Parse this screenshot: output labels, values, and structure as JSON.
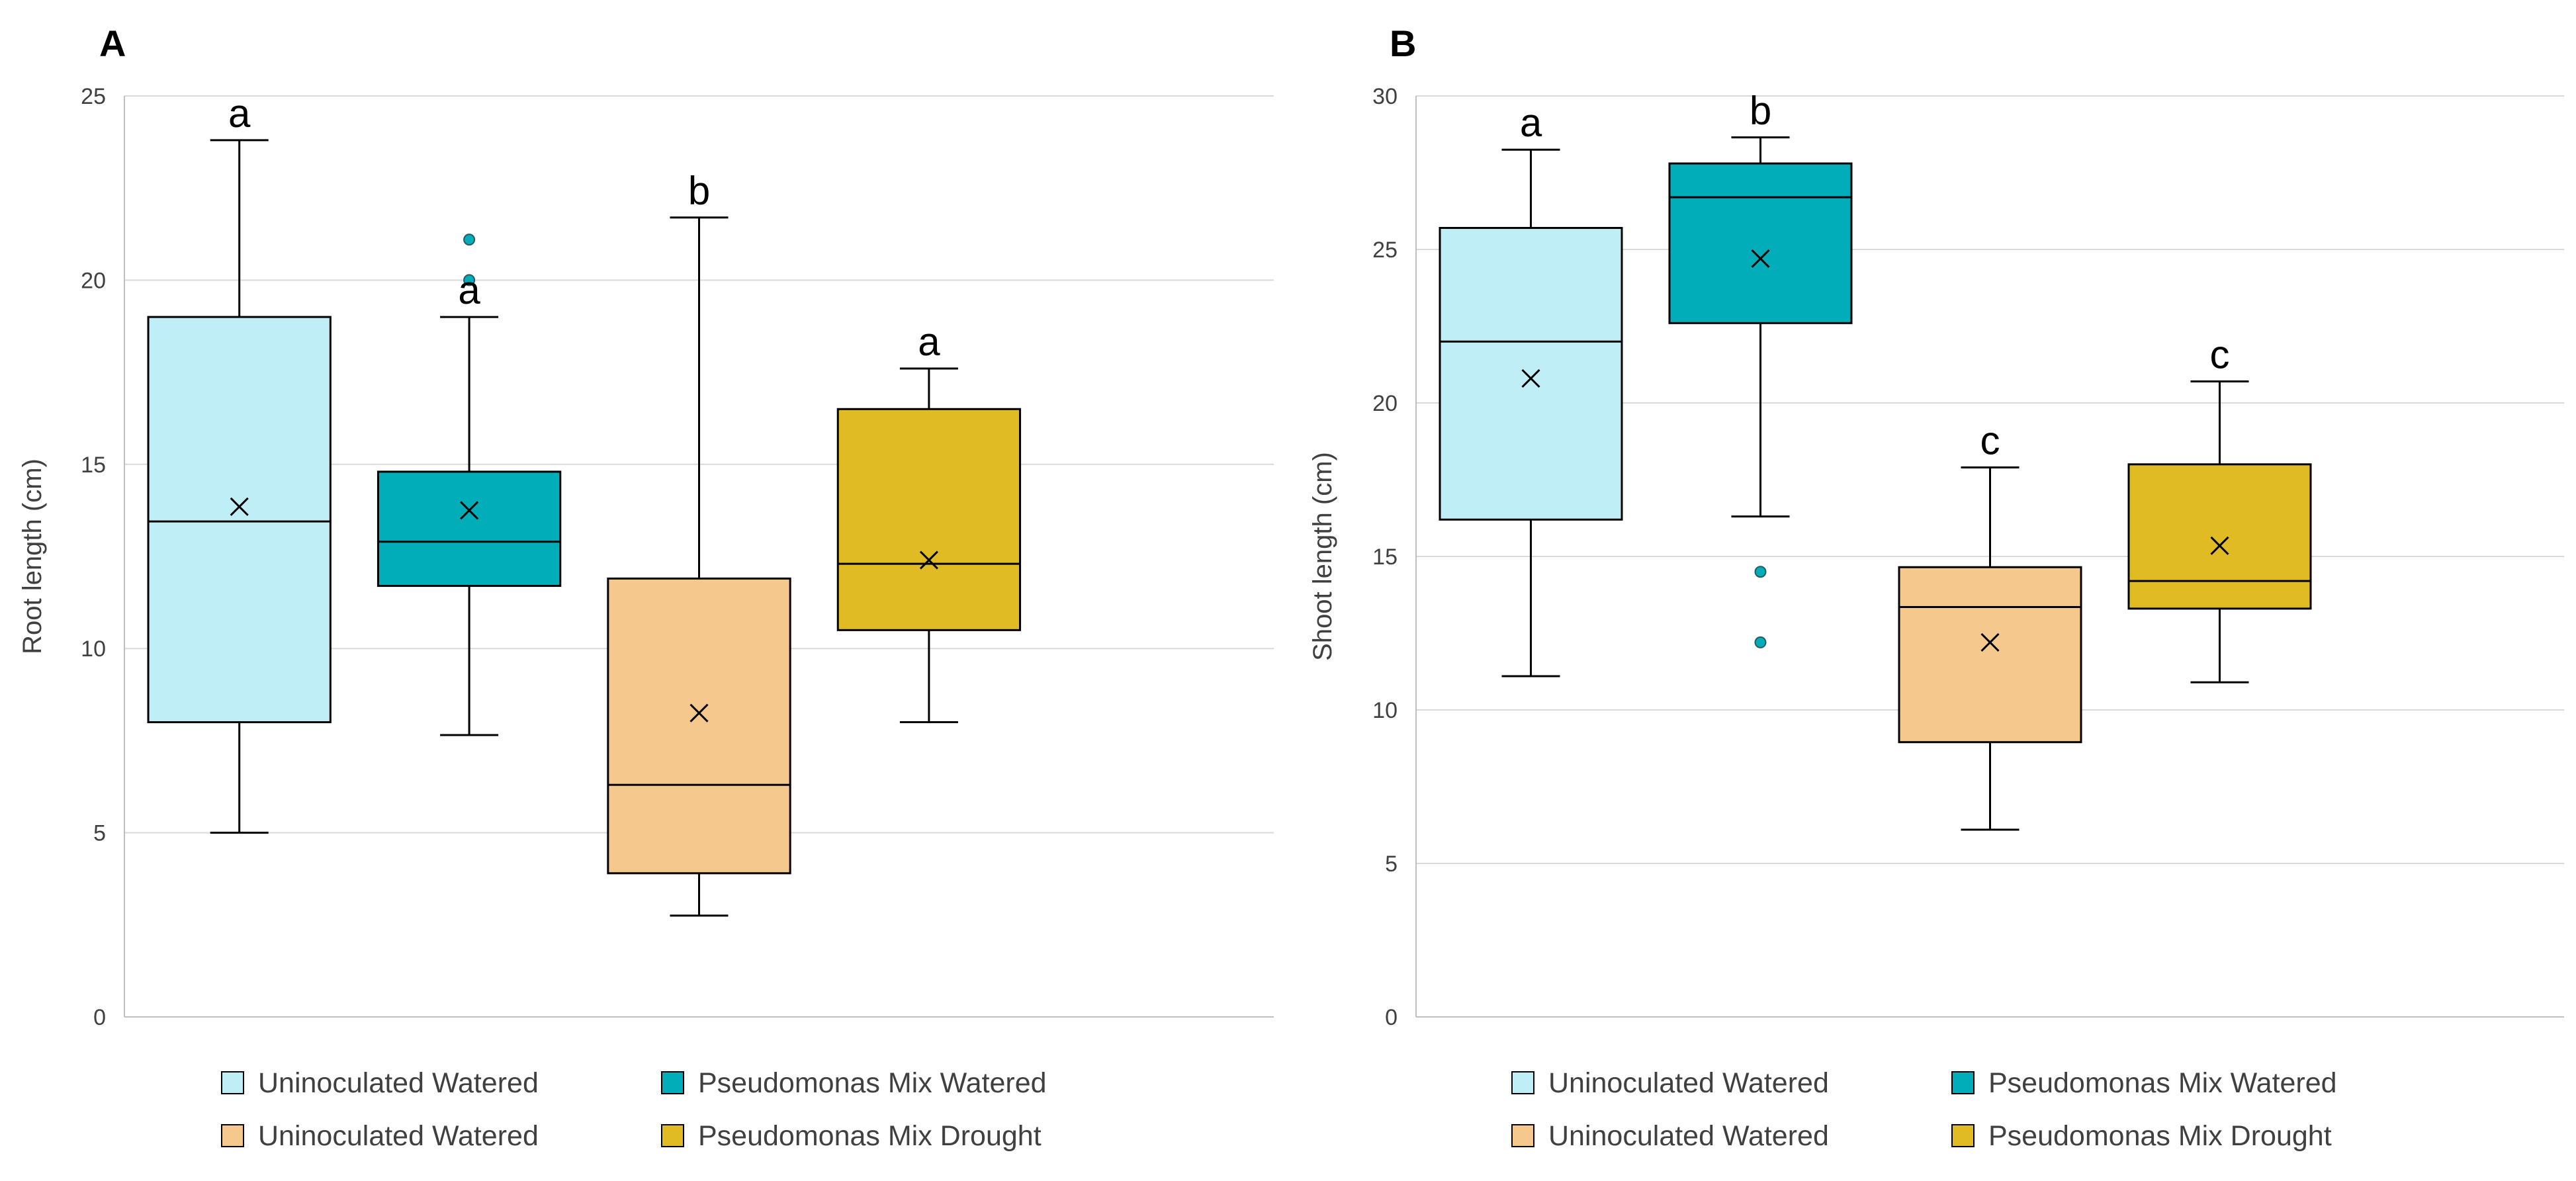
{
  "colors": {
    "grid": "#d9d9d9",
    "axis": "#bfbfbf",
    "stroke": "#000000",
    "text": "#404040"
  },
  "legend": {
    "items": [
      {
        "label": "Uninoculated Watered",
        "color": "#c0eef6"
      },
      {
        "label": "Pseudomonas Mix Watered",
        "color": "#00adb9"
      },
      {
        "label": "Uninoculated Watered",
        "color": "#f5c98e"
      },
      {
        "label": "Pseudomonas Mix Drought",
        "color": "#e0bb24"
      }
    ]
  },
  "chart_data": [
    {
      "type": "box",
      "panel_label": "A",
      "ylabel": "Root length (cm)",
      "ylim": [
        0,
        25
      ],
      "yticks": [
        0,
        5,
        10,
        15,
        20,
        25
      ],
      "grid": true,
      "legend_position": "bottom",
      "boxes": [
        {
          "name": "Uninoculated Watered",
          "color": "#c0eef6",
          "min": 5.0,
          "q1": 8.0,
          "median": 13.45,
          "q3": 19.0,
          "max": 23.8,
          "mean": 13.85,
          "outliers": [],
          "letter": "a"
        },
        {
          "name": "Pseudomonas Mix Watered",
          "color": "#00adb9",
          "min": 7.65,
          "q1": 11.7,
          "median": 12.9,
          "q3": 14.8,
          "max": 19.0,
          "mean": 13.75,
          "outliers": [
            20.0,
            21.1
          ],
          "letter": "a"
        },
        {
          "name": "Uninoculated Watered",
          "color": "#f5c98e",
          "min": 2.75,
          "q1": 3.9,
          "median": 6.3,
          "q3": 11.9,
          "max": 21.7,
          "mean": 8.25,
          "outliers": [],
          "letter": "b"
        },
        {
          "name": "Pseudomonas Mix Drought",
          "color": "#e0bb24",
          "min": 8.0,
          "q1": 10.5,
          "median": 12.3,
          "q3": 16.5,
          "max": 17.6,
          "mean": 12.4,
          "outliers": [],
          "letter": "a"
        }
      ]
    },
    {
      "type": "box",
      "panel_label": "B",
      "ylabel": "Shoot length (cm)",
      "ylim": [
        0,
        30
      ],
      "yticks": [
        0,
        5,
        10,
        15,
        20,
        25,
        30
      ],
      "grid": true,
      "legend_position": "bottom",
      "boxes": [
        {
          "name": "Uninoculated Watered",
          "color": "#c0eef6",
          "min": 11.1,
          "q1": 16.2,
          "median": 22.0,
          "q3": 25.7,
          "max": 28.25,
          "mean": 20.8,
          "outliers": [],
          "letter": "a"
        },
        {
          "name": "Pseudomonas Mix Watered",
          "color": "#00adb9",
          "min": 16.3,
          "q1": 22.6,
          "median": 26.7,
          "q3": 27.8,
          "max": 28.65,
          "mean": 24.7,
          "outliers": [
            12.2,
            14.5
          ],
          "letter": "b"
        },
        {
          "name": "Uninoculated Watered",
          "color": "#f5c98e",
          "min": 6.1,
          "q1": 8.95,
          "median": 13.35,
          "q3": 14.65,
          "max": 17.9,
          "mean": 12.2,
          "outliers": [],
          "letter": "c"
        },
        {
          "name": "Pseudomonas Mix Drought",
          "color": "#e0bb24",
          "min": 10.9,
          "q1": 13.3,
          "median": 14.2,
          "q3": 18.0,
          "max": 20.7,
          "mean": 15.35,
          "outliers": [],
          "letter": "c"
        }
      ]
    }
  ]
}
